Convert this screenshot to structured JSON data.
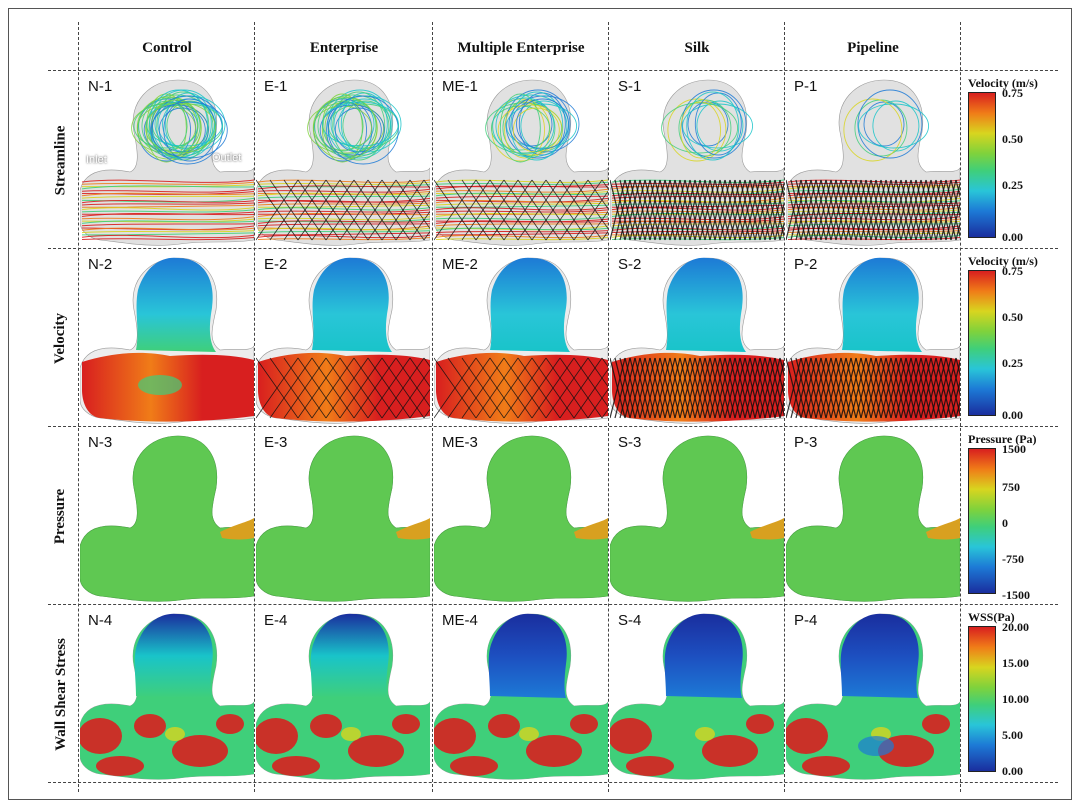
{
  "columns": [
    "Control",
    "Enterprise",
    "Multiple Enterprise",
    "Silk",
    "Pipeline"
  ],
  "rows": [
    {
      "label": "Streamline",
      "cells": [
        "N-1",
        "E-1",
        "ME-1",
        "S-1",
        "P-1"
      ]
    },
    {
      "label": "Velocity",
      "cells": [
        "N-2",
        "E-2",
        "ME-2",
        "S-2",
        "P-2"
      ]
    },
    {
      "label": "Pressure",
      "cells": [
        "N-3",
        "E-3",
        "ME-3",
        "S-3",
        "P-3"
      ]
    },
    {
      "label": "Wall Shear Stress",
      "cells": [
        "N-4",
        "E-4",
        "ME-4",
        "S-4",
        "P-4"
      ]
    }
  ],
  "annotations": {
    "inlet": "Inlet",
    "outlet": "Outlet"
  },
  "legends": [
    {
      "title": "Velocity (m/s)",
      "ticks": [
        "0.75",
        "0.50",
        "0.25",
        "0.00"
      ]
    },
    {
      "title": "Velocity (m/s)",
      "ticks": [
        "0.75",
        "0.50",
        "0.25",
        "0.00"
      ]
    },
    {
      "title": "Pressure (Pa)",
      "ticks": [
        "1500",
        "750",
        "0",
        "-750",
        "-1500"
      ]
    },
    {
      "title": "WSS(Pa)",
      "ticks": [
        "20.00",
        "15.00",
        "10.00",
        "5.00",
        "0.00"
      ]
    }
  ],
  "colors": {
    "scale_low": "#1a2e9e",
    "scale_mid": "#3fcf7a",
    "scale_high": "#d81f1f",
    "vessel_gray": "#c8c8c8"
  }
}
